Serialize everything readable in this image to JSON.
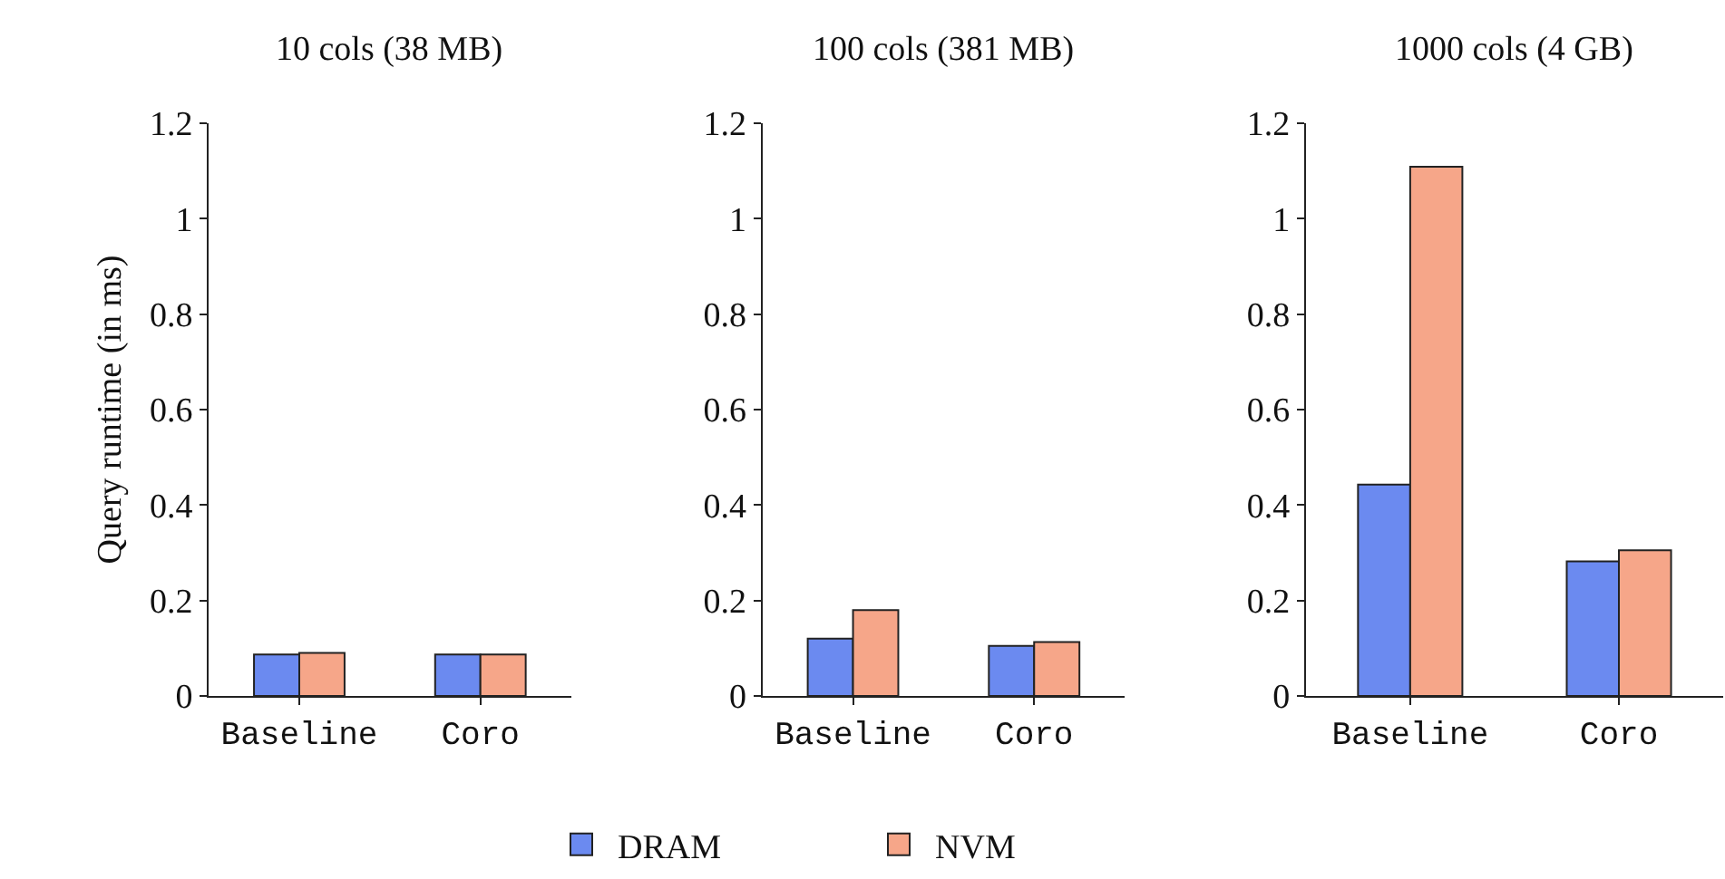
{
  "chart_data": [
    {
      "type": "bar",
      "title": "10 cols (38 MB)",
      "ylabel": "Query runtime (in ms)",
      "categories": [
        "Baseline",
        "Coro"
      ],
      "ylim": [
        0,
        1.2
      ],
      "yticks": [
        0,
        0.2,
        0.4,
        0.6,
        0.8,
        1,
        1.2
      ],
      "grid": false,
      "legend": "bottom",
      "series": [
        {
          "name": "DRAM",
          "color": "#6b8af0",
          "values": [
            0.087,
            0.087
          ]
        },
        {
          "name": "NVM",
          "color": "#f6a689",
          "values": [
            0.09,
            0.087
          ]
        }
      ]
    },
    {
      "type": "bar",
      "title": "100 cols (381 MB)",
      "categories": [
        "Baseline",
        "Coro"
      ],
      "ylim": [
        0,
        1.2
      ],
      "yticks": [
        0,
        0.2,
        0.4,
        0.6,
        0.8,
        1,
        1.2
      ],
      "grid": false,
      "series": [
        {
          "name": "DRAM",
          "color": "#6b8af0",
          "values": [
            0.12,
            0.105
          ]
        },
        {
          "name": "NVM",
          "color": "#f6a689",
          "values": [
            0.18,
            0.113
          ]
        }
      ]
    },
    {
      "type": "bar",
      "title": "1000 cols (4 GB)",
      "categories": [
        "Baseline",
        "Coro"
      ],
      "ylim": [
        0,
        1.2
      ],
      "yticks": [
        0,
        0.2,
        0.4,
        0.6,
        0.8,
        1,
        1.2
      ],
      "grid": false,
      "series": [
        {
          "name": "DRAM",
          "color": "#6b8af0",
          "values": [
            0.443,
            0.282
          ]
        },
        {
          "name": "NVM",
          "color": "#f6a689",
          "values": [
            1.109,
            0.305
          ]
        }
      ]
    }
  ]
}
